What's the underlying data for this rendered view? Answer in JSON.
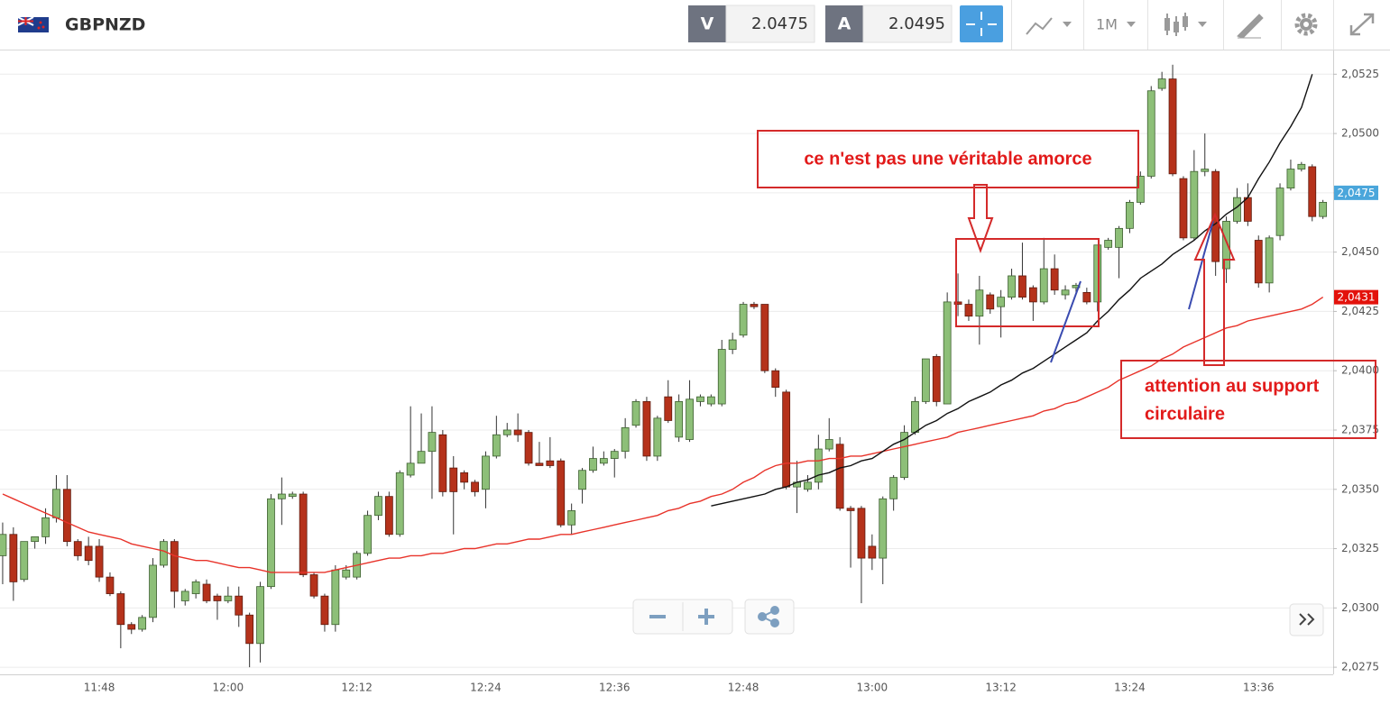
{
  "toolbar": {
    "symbol": "GBPNZD",
    "bid_label": "V",
    "bid": 2.0475,
    "ask_label": "A",
    "ask": 2.0495,
    "timeframe": "1M"
  },
  "chart_data": {
    "type": "candlestick",
    "categories": [
      null,
      null,
      null,
      null,
      null,
      null,
      null,
      null,
      null,
      "11:48",
      null,
      null,
      null,
      null,
      null,
      null,
      null,
      null,
      null,
      null,
      null,
      "12:00",
      null,
      null,
      null,
      null,
      null,
      null,
      null,
      null,
      null,
      null,
      null,
      "12:12",
      null,
      null,
      null,
      null,
      null,
      null,
      null,
      null,
      null,
      null,
      null,
      "12:24",
      null,
      null,
      null,
      null,
      null,
      null,
      null,
      null,
      null,
      null,
      null,
      "12:36",
      null,
      null,
      null,
      null,
      null,
      null,
      null,
      null,
      null,
      null,
      null,
      "12:48",
      null,
      null,
      null,
      null,
      null,
      null,
      null,
      null,
      null,
      null,
      null,
      "13:00",
      null,
      null,
      null,
      null,
      null,
      null,
      null,
      null,
      null,
      null,
      null,
      "13:12",
      null,
      null,
      null,
      null,
      null,
      null,
      null,
      null,
      null,
      null,
      null,
      "13:24",
      null,
      null,
      null,
      null,
      null,
      null,
      null,
      null,
      null,
      null,
      null,
      "13:36",
      null,
      null,
      null,
      null,
      null,
      null
    ],
    "open": [
      2.0322,
      2.0331,
      2.0312,
      2.0328,
      2.033,
      2.0338,
      2.035,
      2.0328,
      2.0326,
      2.0326,
      2.0313,
      2.0306,
      2.0293,
      2.0291,
      2.0296,
      2.0318,
      2.0328,
      2.0303,
      2.0306,
      2.031,
      2.0305,
      2.0303,
      2.0305,
      2.0297,
      2.0285,
      2.0309,
      2.0346,
      2.0347,
      2.0348,
      2.0314,
      2.0305,
      2.0293,
      2.0313,
      2.0313,
      2.0323,
      2.0339,
      2.0347,
      2.0331,
      2.0356,
      2.0361,
      2.0366,
      2.0373,
      2.0359,
      2.0357,
      2.0353,
      2.035,
      2.0364,
      2.0373,
      2.0375,
      2.0374,
      2.0361,
      2.0362,
      2.0362,
      2.0335,
      2.035,
      2.0358,
      2.0361,
      2.0363,
      2.0366,
      2.0377,
      2.0387,
      2.0364,
      2.0389,
      2.0372,
      2.0371,
      2.0387,
      2.0386,
      2.0386,
      2.0409,
      2.0415,
      2.0428,
      2.0428,
      2.04,
      2.0391,
      2.0351,
      2.035,
      2.0353,
      2.0367,
      2.0369,
      2.0342,
      2.0342,
      2.0326,
      2.0321,
      2.0346,
      2.0355,
      2.0374,
      2.0387,
      2.0406,
      2.0386,
      2.0429,
      2.0428,
      2.0423,
      2.0432,
      2.0427,
      2.0431,
      2.044,
      2.0435,
      2.0429,
      2.0443,
      2.0432,
      2.0435,
      2.0433,
      2.0429,
      2.0452,
      2.0452,
      2.046,
      2.0471,
      2.0482,
      2.0519,
      2.0523,
      2.0481,
      2.0456,
      2.0484,
      2.0484,
      2.0443,
      2.0463,
      2.0473,
      2.0455,
      2.0437,
      2.0457,
      2.0477,
      2.0485,
      2.0486,
      2.0465
    ],
    "high": [
      2.0336,
      2.0334,
      2.0328,
      2.033,
      2.0342,
      2.0356,
      2.0356,
      2.0329,
      2.033,
      2.0329,
      2.0315,
      2.0307,
      2.0294,
      2.0297,
      2.0321,
      2.0329,
      2.0329,
      2.0308,
      2.0312,
      2.0312,
      2.0306,
      2.0309,
      2.0309,
      2.0298,
      2.0311,
      2.0348,
      2.0355,
      2.0349,
      2.0349,
      2.0315,
      2.0306,
      2.0318,
      2.0318,
      2.0324,
      2.0341,
      2.0349,
      2.0349,
      2.0358,
      2.0385,
      2.0382,
      2.0385,
      2.0375,
      2.0364,
      2.0358,
      2.0354,
      2.0366,
      2.0381,
      2.0378,
      2.0382,
      2.0375,
      2.037,
      2.0372,
      2.0363,
      2.0344,
      2.0359,
      2.0368,
      2.0366,
      2.0367,
      2.038,
      2.0388,
      2.0389,
      2.0381,
      2.0396,
      2.039,
      2.0396,
      2.039,
      2.039,
      2.0413,
      2.0416,
      2.0429,
      2.0429,
      2.0428,
      2.0401,
      2.0392,
      2.0362,
      2.0356,
      2.0373,
      2.038,
      2.0372,
      2.0343,
      2.0343,
      2.0331,
      2.0347,
      2.0356,
      2.0377,
      2.0389,
      2.0405,
      2.0407,
      2.0433,
      2.0441,
      2.043,
      2.044,
      2.0433,
      2.0434,
      2.0443,
      2.0454,
      2.0436,
      2.0456,
      2.0449,
      2.0436,
      2.0437,
      2.0435,
      2.0453,
      2.0456,
      2.0461,
      2.0472,
      2.0484,
      2.052,
      2.0526,
      2.0529,
      2.0482,
      2.0493,
      2.05,
      2.0485,
      2.0465,
      2.0477,
      2.0479,
      2.0457,
      2.0457,
      2.0479,
      2.0489,
      2.0488,
      2.0487,
      2.0472
    ],
    "low": [
      2.031,
      2.0303,
      2.0311,
      2.0325,
      2.0327,
      2.0336,
      2.0326,
      2.032,
      2.0318,
      2.0311,
      2.0305,
      2.0283,
      2.0289,
      2.029,
      2.0294,
      2.0317,
      2.03,
      2.0301,
      2.0304,
      2.0302,
      2.0295,
      2.0302,
      2.0292,
      2.0275,
      2.0277,
      2.0308,
      2.0335,
      2.0346,
      2.0313,
      2.0304,
      2.029,
      2.029,
      2.0312,
      2.0312,
      2.0322,
      2.0337,
      2.033,
      2.033,
      2.0355,
      2.0361,
      2.0346,
      2.0347,
      2.0331,
      2.035,
      2.0347,
      2.0342,
      2.0363,
      2.0372,
      2.037,
      2.036,
      2.036,
      2.0359,
      2.0334,
      2.0331,
      2.0344,
      2.0357,
      2.036,
      2.0355,
      2.0363,
      2.0376,
      2.0362,
      2.0362,
      2.0378,
      2.037,
      2.037,
      2.0385,
      2.0385,
      2.0385,
      2.0407,
      2.0414,
      2.0426,
      2.0399,
      2.0389,
      2.035,
      2.034,
      2.0349,
      2.035,
      2.0366,
      2.0341,
      2.0317,
      2.0302,
      2.0316,
      2.031,
      2.0341,
      2.0354,
      2.0373,
      2.0386,
      2.0385,
      2.0386,
      2.0423,
      2.0421,
      2.0411,
      2.0424,
      2.0414,
      2.043,
      2.043,
      2.0421,
      2.0428,
      2.0432,
      2.043,
      2.0432,
      2.0428,
      2.0425,
      2.0451,
      2.0439,
      2.0458,
      2.047,
      2.0481,
      2.0518,
      2.0482,
      2.0455,
      2.0455,
      2.0482,
      2.044,
      2.0437,
      2.0462,
      2.0461,
      2.0435,
      2.0433,
      2.0455,
      2.0476,
      2.0484,
      2.0463,
      2.0464
    ],
    "close": [
      2.0331,
      2.0311,
      2.0328,
      2.033,
      2.0338,
      2.035,
      2.0328,
      2.0322,
      2.032,
      2.0313,
      2.0306,
      2.0293,
      2.0291,
      2.0296,
      2.0318,
      2.0328,
      2.0307,
      2.0307,
      2.0311,
      2.0303,
      2.0303,
      2.0305,
      2.0297,
      2.0285,
      2.0309,
      2.0346,
      2.0348,
      2.0348,
      2.0314,
      2.0305,
      2.0293,
      2.0316,
      2.0316,
      2.0323,
      2.0339,
      2.0347,
      2.0331,
      2.0357,
      2.0361,
      2.0366,
      2.0374,
      2.0349,
      2.0349,
      2.0353,
      2.0349,
      2.0364,
      2.0373,
      2.0375,
      2.0373,
      2.0361,
      2.036,
      2.036,
      2.0335,
      2.0341,
      2.0358,
      2.0363,
      2.0363,
      2.0366,
      2.0376,
      2.0387,
      2.0364,
      2.038,
      2.0379,
      2.0387,
      2.0388,
      2.0389,
      2.0389,
      2.0409,
      2.0413,
      2.0428,
      2.0427,
      2.04,
      2.0393,
      2.0351,
      2.0353,
      2.0353,
      2.0367,
      2.0371,
      2.0342,
      2.0341,
      2.0321,
      2.0321,
      2.0346,
      2.0355,
      2.0374,
      2.0387,
      2.0405,
      2.0387,
      2.0429,
      2.0428,
      2.0423,
      2.0434,
      2.0426,
      2.0431,
      2.044,
      2.0431,
      2.0429,
      2.0443,
      2.0434,
      2.0434,
      2.0436,
      2.0429,
      2.0453,
      2.0455,
      2.046,
      2.0471,
      2.0482,
      2.0518,
      2.0523,
      2.0483,
      2.0456,
      2.0484,
      2.0485,
      2.0446,
      2.0463,
      2.0473,
      2.0463,
      2.0437,
      2.0456,
      2.0477,
      2.0485,
      2.0487,
      2.0465,
      2.0471
    ],
    "up_color": "#8dbf78",
    "down_color": "#b5321b",
    "lines": [
      {
        "color": "#e8332a",
        "values": [
          2.0348,
          2.0346,
          2.0344,
          2.0342,
          2.034,
          2.0338,
          2.0336,
          2.0334,
          2.0332,
          2.0331,
          2.033,
          2.0329,
          2.0327,
          2.0326,
          2.0325,
          2.0324,
          2.0322,
          2.0321,
          2.032,
          2.032,
          2.0319,
          2.0318,
          2.0317,
          2.0317,
          2.0316,
          2.0315,
          2.0315,
          2.0315,
          2.0315,
          2.0315,
          2.0315,
          2.0316,
          2.0317,
          2.0318,
          2.0319,
          2.032,
          2.0321,
          2.0321,
          2.0322,
          2.0322,
          2.0323,
          2.0323,
          2.0324,
          2.0325,
          2.0325,
          2.0326,
          2.0327,
          2.0327,
          2.0328,
          2.0329,
          2.0329,
          2.033,
          2.0331,
          2.0331,
          2.0332,
          2.0333,
          2.0334,
          2.0335,
          2.0336,
          2.0337,
          2.0338,
          2.0339,
          2.0341,
          2.0342,
          2.0344,
          2.0345,
          2.0347,
          2.0348,
          2.035,
          2.0353,
          2.0355,
          2.0358,
          2.036,
          2.0361,
          2.0361,
          2.0362,
          2.0362,
          2.0363,
          2.0363,
          2.0364,
          2.0364,
          2.0365,
          2.0366,
          2.0367,
          2.0368,
          2.0369,
          2.037,
          2.0371,
          2.0372,
          2.0374,
          2.0375,
          2.0376,
          2.0377,
          2.0378,
          2.0379,
          2.038,
          2.0381,
          2.0383,
          2.0384,
          2.0386,
          2.0387,
          2.0389,
          2.0391,
          2.0393,
          2.0396,
          2.0398,
          2.04,
          2.0402,
          2.0405,
          2.0407,
          2.041,
          2.0412,
          2.0414,
          2.0416,
          2.0418,
          2.0419,
          2.0421,
          2.0422,
          2.0423,
          2.0424,
          2.0425,
          2.0426,
          2.0428,
          2.0431
        ]
      },
      {
        "color": "#111111",
        "values": [
          null,
          null,
          null,
          null,
          null,
          null,
          null,
          null,
          null,
          null,
          null,
          null,
          null,
          null,
          null,
          null,
          null,
          null,
          null,
          null,
          null,
          null,
          null,
          null,
          null,
          null,
          null,
          null,
          null,
          null,
          null,
          null,
          null,
          null,
          null,
          null,
          null,
          null,
          null,
          null,
          null,
          null,
          null,
          null,
          null,
          null,
          null,
          null,
          null,
          null,
          null,
          null,
          null,
          null,
          null,
          null,
          null,
          null,
          null,
          null,
          null,
          null,
          null,
          null,
          null,
          null,
          2.0343,
          2.0344,
          2.0345,
          2.0346,
          2.0347,
          2.0348,
          2.035,
          2.0351,
          2.0353,
          2.0354,
          2.0356,
          2.0357,
          2.0359,
          2.036,
          2.0362,
          2.0363,
          2.0366,
          2.0369,
          2.0371,
          2.0374,
          2.0377,
          2.0379,
          2.0382,
          2.0384,
          2.0387,
          2.0389,
          2.0391,
          2.0394,
          2.0396,
          2.0399,
          2.0401,
          2.0404,
          2.0407,
          2.041,
          2.0413,
          2.0416,
          2.0421,
          2.0425,
          2.043,
          2.0434,
          2.0439,
          2.0442,
          2.0445,
          2.0449,
          2.0452,
          2.0455,
          2.0459,
          2.0462,
          2.0466,
          2.0469,
          2.0473,
          2.0481,
          2.0488,
          2.0496,
          2.0503,
          2.0511,
          2.0525,
          null
        ]
      }
    ],
    "ylim": [
      2.0272,
      2.0535
    ],
    "yticks": [
      {
        "value": 2.0275,
        "label": "2,0275"
      },
      {
        "value": 2.03,
        "label": "2,0300"
      },
      {
        "value": 2.0325,
        "label": "2,0325"
      },
      {
        "value": 2.035,
        "label": "2,0350"
      },
      {
        "value": 2.0375,
        "label": "2,0375"
      },
      {
        "value": 2.04,
        "label": "2,0400"
      },
      {
        "value": 2.0425,
        "label": "2,0425"
      },
      {
        "value": 2.045,
        "label": "2,0450"
      },
      {
        "value": 2.0475,
        "label": "2,0475"
      },
      {
        "value": 2.05,
        "label": "2,0500"
      },
      {
        "value": 2.0525,
        "label": "2,0525"
      }
    ],
    "grid": true,
    "price_labels": [
      {
        "value": 2.0475,
        "label": "2,0475",
        "color": "#4aa6db"
      },
      {
        "value": 2.0431,
        "label": "2,0431",
        "color": "#e3120b"
      }
    ],
    "annotations": [
      {
        "text": "ce n'est pas une véritable amorce"
      },
      {
        "lines": [
          "attention au support",
          "circulaire"
        ]
      }
    ]
  }
}
